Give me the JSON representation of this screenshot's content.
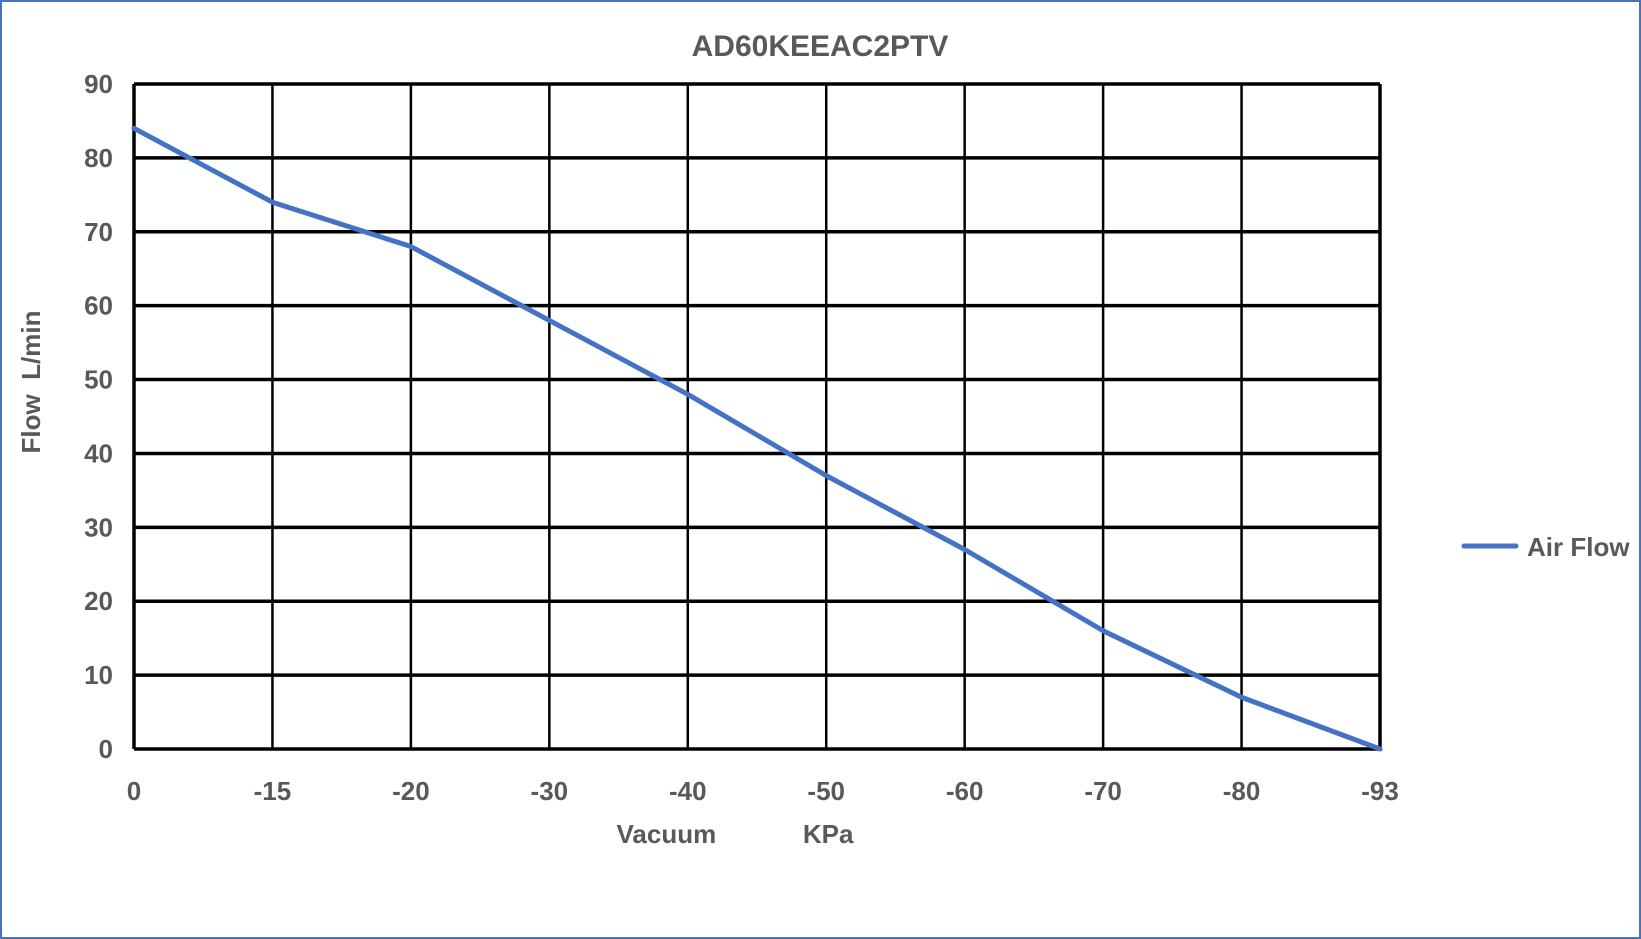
{
  "chart_data": {
    "type": "line",
    "title": "AD60KEEAC2PTV",
    "xlabel": "Vacuum            KPa",
    "ylabel": "Flow  L/min",
    "categories": [
      "0",
      "-15",
      "-20",
      "-30",
      "-40",
      "-50",
      "-60",
      "-70",
      "-80",
      "-93"
    ],
    "series": [
      {
        "name": "Air Flow",
        "color": "#4472c4",
        "values": [
          84,
          74,
          68,
          58,
          48,
          37,
          27,
          16,
          7,
          0
        ]
      }
    ],
    "ylim": [
      0,
      90
    ],
    "yticks": [
      "0",
      "10",
      "20",
      "30",
      "40",
      "50",
      "60",
      "70",
      "80",
      "90"
    ],
    "grid": true,
    "legend": "right",
    "colors": {
      "line": "#4472c4",
      "grid": "#000000",
      "text": "#595959",
      "border": "#4472c4"
    }
  }
}
